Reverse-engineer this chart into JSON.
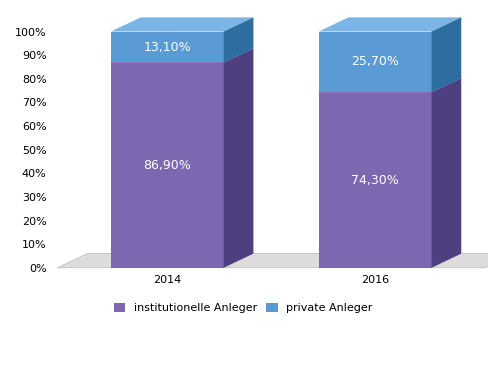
{
  "categories": [
    "2014",
    "2016"
  ],
  "institutional": [
    86.9,
    74.3
  ],
  "private": [
    13.1,
    25.7
  ],
  "institutional_label": [
    "86,90%",
    "74,30%"
  ],
  "private_label": [
    "13,10%",
    "25,70%"
  ],
  "color_purple_front": "#7B68B0",
  "color_purple_top": "#A090CC",
  "color_purple_side": "#4E3F80",
  "color_blue_front": "#5B9BD5",
  "color_blue_top": "#7BB5E5",
  "color_blue_side": "#2E6DA0",
  "legend_institutional": "institutionelle Anleger",
  "legend_private": "private Anleger",
  "yticks": [
    0,
    10,
    20,
    30,
    40,
    50,
    60,
    70,
    80,
    90,
    100
  ],
  "ytick_labels": [
    "0%",
    "10%",
    "20%",
    "30%",
    "40%",
    "50%",
    "60%",
    "70%",
    "80%",
    "90%",
    "100%"
  ],
  "text_color": "#FFFFFF",
  "font_size_label": 9,
  "font_size_tick": 8,
  "font_size_legend": 8
}
